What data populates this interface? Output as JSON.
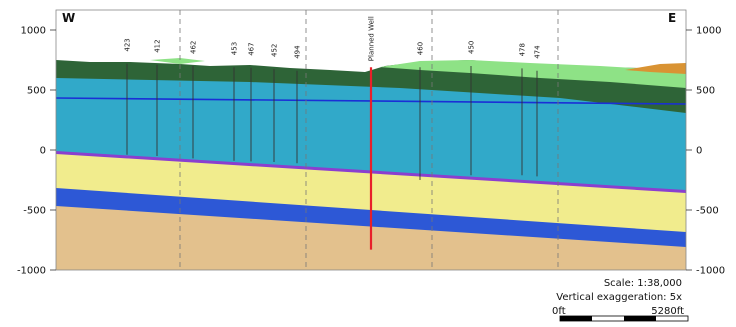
{
  "directions": {
    "left": "W",
    "right": "E"
  },
  "y_axis": {
    "ticks": [
      1000,
      500,
      0,
      -500,
      -1000
    ],
    "labels": [
      "1000",
      "500",
      "0",
      "-500",
      "-1000"
    ],
    "range": [
      -1000,
      1000
    ]
  },
  "wells": [
    {
      "label": "423",
      "top": 720,
      "bottom": -40
    },
    {
      "label": "412",
      "top": 710,
      "bottom": -50
    },
    {
      "label": "462",
      "top": 700,
      "bottom": -70
    },
    {
      "label": "453",
      "top": 690,
      "bottom": -90
    },
    {
      "label": "467",
      "top": 685,
      "bottom": -95
    },
    {
      "label": "452",
      "top": 675,
      "bottom": -100
    },
    {
      "label": "494",
      "top": 660,
      "bottom": -110
    }
  ],
  "east_wells": [
    {
      "label": "460",
      "top": 690,
      "bottom": -250
    },
    {
      "label": "450",
      "top": 700,
      "bottom": -210
    },
    {
      "label": "478",
      "top": 680,
      "bottom": -210
    },
    {
      "label": "474",
      "top": 660,
      "bottom": -220
    }
  ],
  "planned_well": {
    "label": "Planned Well",
    "top": 690,
    "bottom": -830,
    "color": "#e8202a"
  },
  "scale": {
    "text": "Scale: 1:38,000",
    "vertical_exaggeration": "Vertical exaggeration: 5x",
    "bar_start": "0ft",
    "bar_end": "5280ft"
  },
  "colors": {
    "base_tan": "#e3c18d",
    "blue_band": "#2d58d6",
    "yellow": "#f1ec8d",
    "purple": "#8a3fcf",
    "aqua": "#31a9c9",
    "dark_green": "#2e6437",
    "light_green": "#8ee286",
    "orange": "#d99333",
    "water_line": "#1a2fd6"
  }
}
